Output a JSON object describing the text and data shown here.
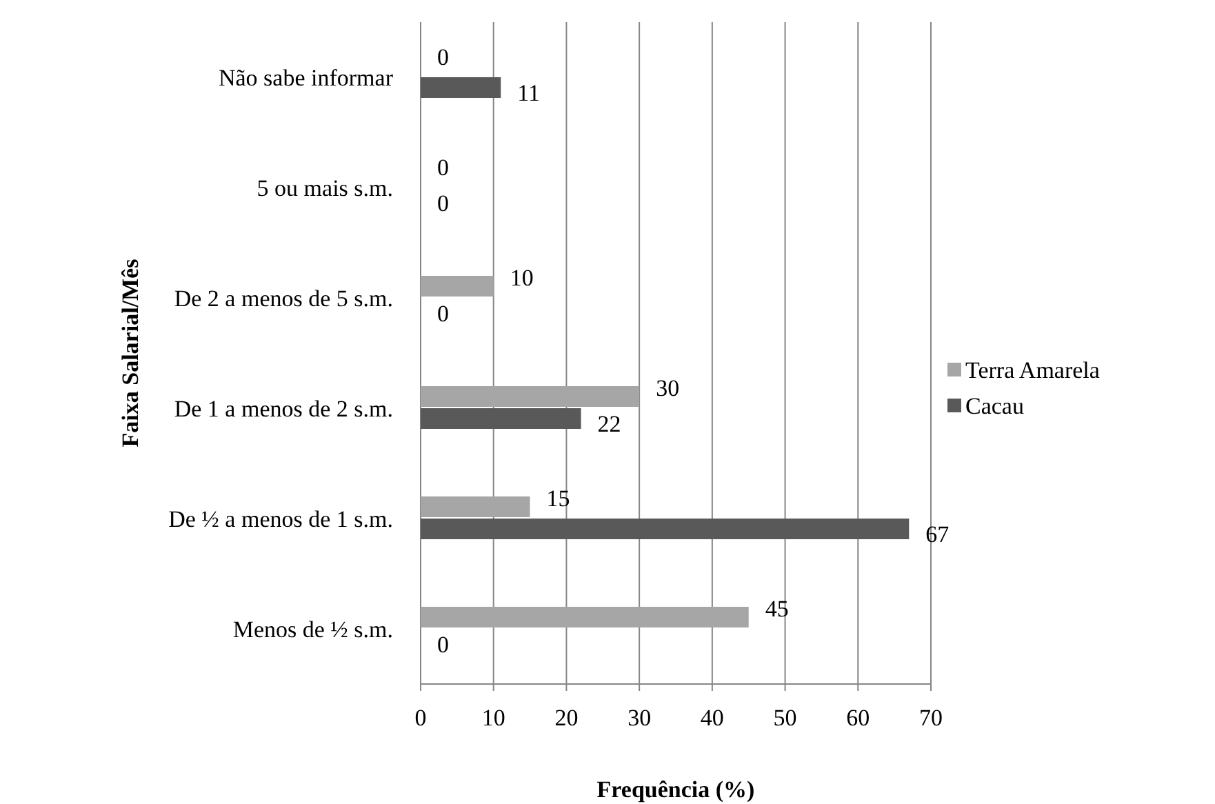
{
  "chart_data": {
    "type": "bar",
    "orientation": "horizontal",
    "xlabel": "Frequência (%)",
    "ylabel": "Faixa Salarial/Mês",
    "categories": [
      "Não sabe informar",
      "5 ou mais s.m.",
      "De 2 a menos de 5 s.m.",
      "De 1 a menos de 2 s.m.",
      "De ½ a menos de 1 s.m.",
      "Menos de ½ s.m."
    ],
    "series": [
      {
        "name": "Terra Amarela",
        "color": "#a6a6a6",
        "values": [
          0,
          0,
          10,
          30,
          15,
          45
        ]
      },
      {
        "name": "Cacau",
        "color": "#595959",
        "values": [
          11,
          0,
          0,
          22,
          67,
          0
        ]
      }
    ],
    "xlim": [
      0,
      70
    ],
    "xticks": [
      0,
      10,
      20,
      30,
      40,
      50,
      60,
      70
    ],
    "grid": "x",
    "legend": "right",
    "data_labels": true
  }
}
